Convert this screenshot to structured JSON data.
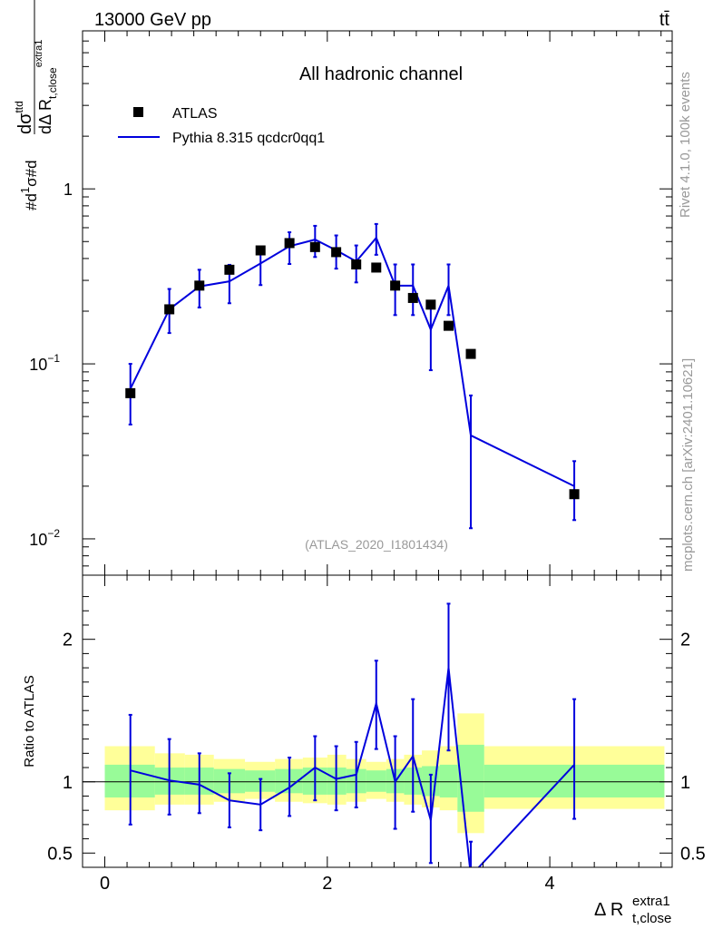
{
  "header": {
    "energy_label": "13000 GeV pp",
    "process_label": "tt̄"
  },
  "side_labels": {
    "rivet": "Rivet 4.1.0,  100k events",
    "source": "mcplots.cern.ch [arXiv:2401.10621]"
  },
  "chart_data": [
    {
      "type": "scatter",
      "title": "All hadronic channel",
      "analysis_tag": "(ATLAS_2020_I1801434)",
      "xlabel_main": "Δ R",
      "xlabel_sub": "t,close",
      "xlabel_sup": "extra1",
      "ylabel": "#d1/σ#d dσ^{ttd}/dΔ R_{t,close}^{extra1}",
      "yscale": "log",
      "xlim": [
        -0.2,
        5.1
      ],
      "ylim": [
        0.0062,
        8.0
      ],
      "y_ticks": [
        {
          "value": 0.01,
          "label_base": "10",
          "label_exp": "−2"
        },
        {
          "value": 0.1,
          "label_base": "10",
          "label_exp": "−1"
        },
        {
          "value": 1,
          "label_base": "1",
          "label_exp": ""
        }
      ],
      "legend": [
        {
          "name": "ATLAS",
          "style": "marker"
        },
        {
          "name": "Pythia 8.315 qcdcr0qq1",
          "style": "line"
        }
      ],
      "series": [
        {
          "name": "ATLAS",
          "x": [
            0.23,
            0.58,
            0.85,
            1.12,
            1.4,
            1.66,
            1.89,
            2.08,
            2.26,
            2.44,
            2.61,
            2.77,
            2.93,
            3.09,
            3.29,
            4.22
          ],
          "y": [
            0.068,
            0.205,
            0.28,
            0.345,
            0.445,
            0.49,
            0.465,
            0.435,
            0.37,
            0.355,
            0.28,
            0.238,
            0.218,
            0.165,
            0.114,
            0.018
          ]
        },
        {
          "name": "Pythia 8.315 qcdcr0qq1",
          "color": "#0000dd",
          "x": [
            0.23,
            0.58,
            0.85,
            1.12,
            1.4,
            1.66,
            1.89,
            2.08,
            2.26,
            2.44,
            2.61,
            2.77,
            2.93,
            3.09,
            3.29,
            4.22
          ],
          "y": [
            0.072,
            0.205,
            0.277,
            0.296,
            0.375,
            0.47,
            0.513,
            0.446,
            0.385,
            0.525,
            0.28,
            0.28,
            0.157,
            0.28,
            0.039,
            0.02
          ],
          "y_low": [
            0.045,
            0.15,
            0.21,
            0.222,
            0.282,
            0.372,
            0.408,
            0.35,
            0.292,
            0.42,
            0.19,
            0.19,
            0.092,
            0.19,
            0.0115,
            0.0128
          ],
          "y_high": [
            0.1,
            0.268,
            0.345,
            0.368,
            0.468,
            0.565,
            0.615,
            0.542,
            0.475,
            0.63,
            0.37,
            0.37,
            0.22,
            0.37,
            0.066,
            0.0278
          ]
        }
      ]
    },
    {
      "type": "line",
      "ylabel": "Ratio to ATLAS",
      "xlim": [
        -0.2,
        5.1
      ],
      "ylim": [
        0.4,
        2.45
      ],
      "x_ticks": [
        0,
        2,
        4
      ],
      "y_ticks": [
        0.5,
        1,
        2
      ],
      "bin_edges": [
        0.0,
        0.45,
        0.72,
        0.98,
        1.26,
        1.53,
        1.78,
        2.0,
        2.17,
        2.35,
        2.53,
        2.69,
        2.85,
        3.01,
        3.17,
        3.41,
        5.03
      ],
      "band_inner": {
        "color": "#98fb98",
        "low": [
          0.89,
          0.91,
          0.91,
          0.92,
          0.93,
          0.92,
          0.91,
          0.91,
          0.92,
          0.93,
          0.92,
          0.91,
          0.9,
          0.89,
          0.79,
          0.89
        ],
        "high": [
          1.12,
          1.1,
          1.1,
          1.09,
          1.08,
          1.09,
          1.1,
          1.1,
          1.09,
          1.08,
          1.09,
          1.1,
          1.11,
          1.12,
          1.26,
          1.12
        ]
      },
      "band_outer": {
        "color": "#ffff99",
        "low": [
          0.8,
          0.84,
          0.84,
          0.86,
          0.88,
          0.86,
          0.85,
          0.84,
          0.86,
          0.88,
          0.86,
          0.84,
          0.82,
          0.8,
          0.64,
          0.81
        ],
        "high": [
          1.25,
          1.2,
          1.19,
          1.16,
          1.14,
          1.16,
          1.17,
          1.19,
          1.16,
          1.14,
          1.16,
          1.19,
          1.22,
          1.25,
          1.48,
          1.25
        ]
      },
      "series": [
        {
          "name": "Pythia 8.315 qcdcr0qq1",
          "color": "#0000dd",
          "x": [
            0.23,
            0.58,
            0.85,
            1.12,
            1.4,
            1.66,
            1.89,
            2.08,
            2.26,
            2.44,
            2.61,
            2.77,
            2.93,
            3.09,
            3.29,
            4.22
          ],
          "y": [
            1.08,
            1.01,
            0.98,
            0.87,
            0.84,
            0.96,
            1.1,
            1.02,
            1.05,
            1.55,
            1.0,
            1.18,
            0.73,
            1.8,
            0.34,
            1.12
          ],
          "y_low": [
            0.7,
            0.77,
            0.78,
            0.68,
            0.66,
            0.76,
            0.87,
            0.8,
            0.82,
            1.23,
            0.67,
            0.79,
            0.43,
            1.22,
            0.1,
            0.74
          ],
          "y_high": [
            1.47,
            1.3,
            1.2,
            1.06,
            1.02,
            1.17,
            1.32,
            1.25,
            1.28,
            1.85,
            1.32,
            1.58,
            1.05,
            2.25,
            0.58,
            1.58
          ]
        }
      ]
    }
  ]
}
